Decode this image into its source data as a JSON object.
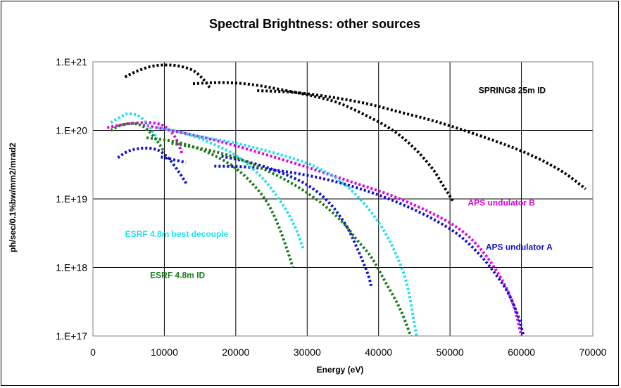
{
  "chart_data": {
    "type": "line",
    "title": "Spectral Brightness: other sources",
    "xlabel": "Energy (eV)",
    "ylabel": "ph/sec/0.1%bw/mm2/mrad2",
    "xlim": [
      0,
      70000
    ],
    "ylim": [
      1e+17,
      1e+21
    ],
    "y_scale": "log",
    "grid": true,
    "x_ticks": [
      "0",
      "10000",
      "20000",
      "30000",
      "40000",
      "50000",
      "60000",
      "70000"
    ],
    "y_ticks": [
      "1.E+17",
      "1.E+18",
      "1.E+19",
      "1.E+20",
      "1.E+21"
    ],
    "annotations": [
      {
        "text": "SPRING8 25m ID",
        "color": "#000000",
        "x": 54000,
        "y": 3.5e+20
      },
      {
        "text": "APS undulator B",
        "color": "#e000e0",
        "x": 52500,
        "y": 8e+18
      },
      {
        "text": "APS undulator A",
        "color": "#1010cc",
        "x": 55000,
        "y": 1.8e+18
      },
      {
        "text": "ESRF 4.8m best decouple",
        "color": "#20e0f0",
        "x": 4500,
        "y": 2.8e+18
      },
      {
        "text": "ESRF 4.8m ID",
        "color": "#1e7a1e",
        "x": 8000,
        "y": 7e+17
      }
    ],
    "series": [
      {
        "color": "#000000",
        "points": [
          [
            4500,
            6e+20
          ],
          [
            6000,
            7.2e+20
          ],
          [
            8000,
            8.5e+20
          ],
          [
            10000,
            9e+20
          ],
          [
            12000,
            8.7e+20
          ],
          [
            14000,
            7.5e+20
          ],
          [
            15500,
            5.5e+20
          ],
          [
            16500,
            4e+20
          ]
        ]
      },
      {
        "color": "#000000",
        "points": [
          [
            14000,
            4.8e+20
          ],
          [
            18000,
            5e+20
          ],
          [
            22000,
            4.7e+20
          ],
          [
            26000,
            4e+20
          ],
          [
            30000,
            3.3e+20
          ],
          [
            34000,
            2.6e+20
          ],
          [
            38000,
            1.7e+20
          ],
          [
            42000,
            1e+20
          ],
          [
            45000,
            5.5e+19
          ],
          [
            47500,
            2.8e+19
          ],
          [
            49000,
            1.6e+19
          ],
          [
            50500,
            9e+18
          ]
        ]
      },
      {
        "color": "#000000",
        "points": [
          [
            23000,
            3.8e+20
          ],
          [
            28000,
            3.6e+20
          ],
          [
            33000,
            3.1e+20
          ],
          [
            38000,
            2.5e+20
          ],
          [
            43000,
            1.85e+20
          ],
          [
            48000,
            1.35e+20
          ],
          [
            53000,
            9.2e+19
          ],
          [
            57000,
            6.6e+19
          ],
          [
            60000,
            5e+19
          ],
          [
            63000,
            3.6e+19
          ],
          [
            66000,
            2.4e+19
          ],
          [
            69000,
            1.4e+19
          ]
        ]
      },
      {
        "color": "#e000e0",
        "points": [
          [
            2000,
            1.1e+20
          ],
          [
            5000,
            1.25e+20
          ],
          [
            8000,
            1.3e+20
          ],
          [
            10000,
            1.15e+20
          ],
          [
            11500,
            8e+19
          ],
          [
            12500,
            4.5e+19
          ]
        ]
      },
      {
        "color": "#e000e0",
        "points": [
          [
            7000,
            1.2e+20
          ],
          [
            12000,
            9.5e+19
          ],
          [
            18000,
            6.8e+19
          ],
          [
            24000,
            4.5e+19
          ],
          [
            30000,
            2.9e+19
          ],
          [
            36000,
            1.8e+19
          ],
          [
            42000,
            1.1e+19
          ],
          [
            48000,
            5.8e+18
          ],
          [
            52000,
            3.2e+18
          ],
          [
            55000,
            1.5e+18
          ],
          [
            57500,
            6e+17
          ],
          [
            59000,
            2.6e+17
          ],
          [
            60000,
            1e+17
          ]
        ]
      },
      {
        "color": "#1010cc",
        "points": [
          [
            3500,
            4e+19
          ],
          [
            5000,
            5e+19
          ],
          [
            7000,
            5.5e+19
          ],
          [
            9000,
            5.2e+19
          ],
          [
            10500,
            4e+19
          ],
          [
            12000,
            2.5e+19
          ],
          [
            13200,
            1.6e+19
          ]
        ]
      },
      {
        "color": "#1010cc",
        "points": [
          [
            9500,
            4.1e+19
          ],
          [
            11000,
            3.8e+19
          ],
          [
            13000,
            3.4e+19
          ]
        ]
      },
      {
        "color": "#1010cc",
        "points": [
          [
            17000,
            3e+19
          ],
          [
            22000,
            2.9e+19
          ],
          [
            27000,
            2.5e+19
          ],
          [
            32000,
            2e+19
          ],
          [
            37000,
            1.45e+19
          ],
          [
            42000,
            9.5e+18
          ],
          [
            47000,
            5.5e+18
          ],
          [
            51000,
            3.1e+18
          ],
          [
            54000,
            1.6e+18
          ],
          [
            56000,
            9e+17
          ],
          [
            58000,
            4.5e+17
          ],
          [
            59500,
            2e+17
          ],
          [
            60300,
            1e+17
          ]
        ]
      },
      {
        "color": "#1010cc",
        "points": [
          [
            18000,
            4.2e+19
          ],
          [
            22000,
            3.4e+19
          ],
          [
            26000,
            2.5e+19
          ],
          [
            30000,
            1.6e+19
          ],
          [
            33000,
            9e+18
          ],
          [
            35500,
            4e+18
          ],
          [
            37000,
            1.9e+18
          ],
          [
            38500,
            8e+17
          ],
          [
            39000,
            5e+17
          ]
        ]
      },
      {
        "color": "#20e0f0",
        "points": [
          [
            2500,
            1.3e+20
          ],
          [
            4000,
            1.6e+20
          ],
          [
            5000,
            1.75e+20
          ],
          [
            6500,
            1.6e+20
          ],
          [
            8000,
            1.1e+20
          ],
          [
            9000,
            7.5e+19
          ]
        ]
      },
      {
        "color": "#20e0f0",
        "points": [
          [
            9000,
            1.1e+20
          ],
          [
            13000,
            9e+19
          ],
          [
            17000,
            6.2e+19
          ],
          [
            20000,
            4.3e+19
          ],
          [
            23000,
            2.4e+19
          ],
          [
            25000,
            1.4e+19
          ],
          [
            27000,
            7e+18
          ],
          [
            28500,
            3.5e+18
          ],
          [
            29500,
            1.8e+18
          ]
        ]
      },
      {
        "color": "#20e0f0",
        "points": [
          [
            13000,
            8.8e+19
          ],
          [
            20000,
            6.5e+19
          ],
          [
            26000,
            4.5e+19
          ],
          [
            31000,
            3e+19
          ],
          [
            35000,
            1.7e+19
          ],
          [
            38000,
            8.5e+18
          ],
          [
            40500,
            3.8e+18
          ],
          [
            42500,
            1.5e+18
          ],
          [
            44000,
            5.5e+17
          ],
          [
            45300,
            1e+17
          ]
        ]
      },
      {
        "color": "#1e7a1e",
        "points": [
          [
            2500,
            1e+20
          ],
          [
            4000,
            1.2e+20
          ],
          [
            6000,
            1.25e+20
          ],
          [
            7500,
            1.05e+20
          ],
          [
            9000,
            7e+19
          ],
          [
            10000,
            4.8e+19
          ]
        ]
      },
      {
        "color": "#1e7a1e",
        "points": [
          [
            7500,
            7.8e+19
          ],
          [
            11000,
            7e+19
          ],
          [
            14000,
            5.8e+19
          ],
          [
            17000,
            4.3e+19
          ],
          [
            20000,
            2.8e+19
          ],
          [
            22500,
            1.6e+19
          ],
          [
            24500,
            8.5e+18
          ],
          [
            26000,
            4e+18
          ],
          [
            27200,
            1.8e+18
          ],
          [
            28000,
            1e+18
          ]
        ]
      },
      {
        "color": "#1e7a1e",
        "points": [
          [
            11000,
            6.5e+19
          ],
          [
            16000,
            5.2e+19
          ],
          [
            20000,
            4e+19
          ],
          [
            24000,
            2.7e+19
          ],
          [
            28000,
            1.65e+19
          ],
          [
            32000,
            8.7e+18
          ],
          [
            35000,
            4.5e+18
          ],
          [
            37000,
            2.5e+18
          ],
          [
            39000,
            1.4e+18
          ],
          [
            41000,
            6e+17
          ],
          [
            43000,
            2.5e+17
          ],
          [
            44500,
            1e+17
          ]
        ]
      }
    ]
  }
}
